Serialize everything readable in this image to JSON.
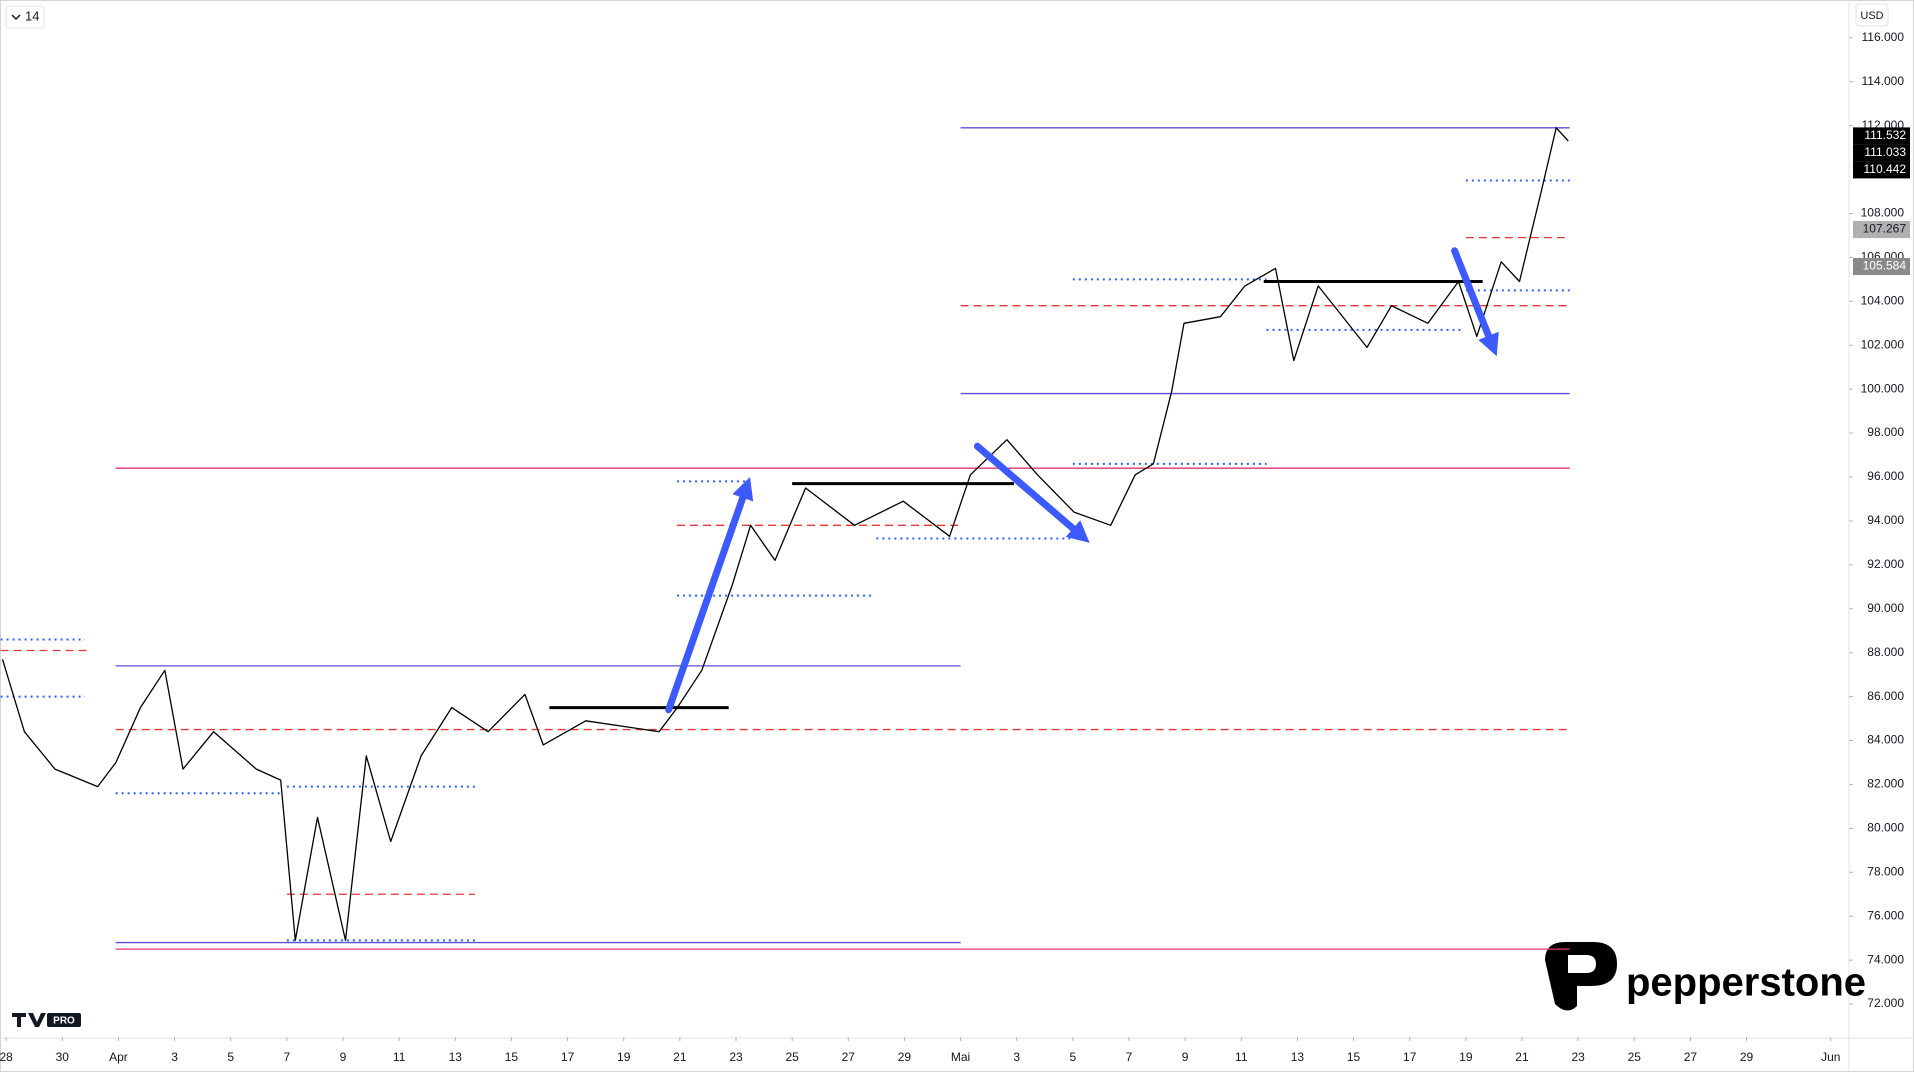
{
  "chart_data": {
    "type": "line",
    "interval": "14",
    "currency": "USD",
    "brand": "pepperstone",
    "platform": "PRO",
    "color": "#000000",
    "x": [
      -0.13,
      0.65,
      1.74,
      3.26,
      3.91,
      4.78,
      5.65,
      6.3,
      7.39,
      8.91,
      9.78,
      10.3,
      11.09,
      12.09,
      12.83,
      13.7,
      14.78,
      15.87,
      17.17,
      18.48,
      19.13,
      20.65,
      23.26,
      23.91,
      24.78,
      25.87,
      26.52,
      27.39,
      28.48,
      30.22,
      31.96,
      33.61,
      34.35,
      35.65,
      36.74,
      38.04,
      39.35,
      40.22,
      40.87,
      41.52,
      41.96,
      43.26,
      44.13,
      45.22,
      45.87,
      46.74,
      48.48,
      49.35,
      50.65,
      51.74,
      52.39,
      53.26,
      53.91,
      54.65,
      55.22,
      55.65
    ],
    "values": [
      87.7,
      84.4,
      82.7,
      81.9,
      83.0,
      85.5,
      87.2,
      82.7,
      84.4,
      82.7,
      82.2,
      74.9,
      80.5,
      74.9,
      83.3,
      79.4,
      83.3,
      85.5,
      84.4,
      86.1,
      83.8,
      84.9,
      84.4,
      85.5,
      87.2,
      91.1,
      93.8,
      92.2,
      95.5,
      93.8,
      94.9,
      93.3,
      96.1,
      97.7,
      96.1,
      94.4,
      93.8,
      96.1,
      96.6,
      99.9,
      103.0,
      103.3,
      104.7,
      105.5,
      101.3,
      104.7,
      101.9,
      103.8,
      103.0,
      104.9,
      102.4,
      105.8,
      104.9,
      108.8,
      111.9,
      111.3
    ],
    "xlim": [
      -0.22,
      65.65
    ],
    "ylim": [
      70.5,
      117.72
    ],
    "xticks": [
      {
        "value": 0,
        "label": "28"
      },
      {
        "value": 2,
        "label": "30"
      },
      {
        "value": 4,
        "label": "Apr"
      },
      {
        "value": 6,
        "label": "3"
      },
      {
        "value": 8,
        "label": "5"
      },
      {
        "value": 10,
        "label": "7"
      },
      {
        "value": 12,
        "label": "9"
      },
      {
        "value": 14,
        "label": "11"
      },
      {
        "value": 16,
        "label": "13"
      },
      {
        "value": 18,
        "label": "15"
      },
      {
        "value": 20,
        "label": "17"
      },
      {
        "value": 22,
        "label": "19"
      },
      {
        "value": 24,
        "label": "21"
      },
      {
        "value": 26,
        "label": "23"
      },
      {
        "value": 28,
        "label": "25"
      },
      {
        "value": 30,
        "label": "27"
      },
      {
        "value": 32,
        "label": "29"
      },
      {
        "value": 34,
        "label": "Mai"
      },
      {
        "value": 36,
        "label": "3"
      },
      {
        "value": 38,
        "label": "5"
      },
      {
        "value": 40,
        "label": "7"
      },
      {
        "value": 42,
        "label": "9"
      },
      {
        "value": 44,
        "label": "11"
      },
      {
        "value": 46,
        "label": "13"
      },
      {
        "value": 48,
        "label": "15"
      },
      {
        "value": 50,
        "label": "17"
      },
      {
        "value": 52,
        "label": "19"
      },
      {
        "value": 54,
        "label": "21"
      },
      {
        "value": 56,
        "label": "23"
      },
      {
        "value": 58,
        "label": "25"
      },
      {
        "value": 60,
        "label": "27"
      },
      {
        "value": 62,
        "label": "29"
      },
      {
        "value": 65,
        "label": "Jun"
      }
    ],
    "yticks": [
      {
        "value": 72,
        "label": "72.000"
      },
      {
        "value": 74,
        "label": "74.000"
      },
      {
        "value": 76,
        "label": "76.000"
      },
      {
        "value": 78,
        "label": "78.000"
      },
      {
        "value": 80,
        "label": "80.000"
      },
      {
        "value": 82,
        "label": "82.000"
      },
      {
        "value": 84,
        "label": "84.000"
      },
      {
        "value": 86,
        "label": "86.000"
      },
      {
        "value": 88,
        "label": "88.000"
      },
      {
        "value": 90,
        "label": "90.000"
      },
      {
        "value": 92,
        "label": "92.000"
      },
      {
        "value": 94,
        "label": "94.000"
      },
      {
        "value": 96,
        "label": "96.000"
      },
      {
        "value": 98,
        "label": "98.000"
      },
      {
        "value": 100,
        "label": "100.000"
      },
      {
        "value": 102,
        "label": "102.000"
      },
      {
        "value": 104,
        "label": "104.000"
      },
      {
        "value": 106,
        "label": "106.000"
      },
      {
        "value": 108,
        "label": "108.000"
      },
      {
        "value": 112,
        "label": "112.000"
      },
      {
        "value": 114,
        "label": "114.000"
      },
      {
        "value": 116,
        "label": "116.000"
      }
    ],
    "levels": [
      {
        "value": 111.9,
        "from": 34,
        "to": 55.7,
        "color": "#5b4fd6",
        "style": "solid"
      },
      {
        "value": 99.8,
        "from": 34,
        "to": 55.7,
        "color": "#5b4fd6",
        "style": "solid"
      },
      {
        "value": 87.4,
        "from": 3.9,
        "to": 34,
        "color": "#5b4fd6",
        "style": "solid"
      },
      {
        "value": 74.8,
        "from": 3.9,
        "to": 34,
        "color": "#5b4fd6",
        "style": "solid"
      },
      {
        "value": 96.4,
        "from": 3.9,
        "to": 55.7,
        "color": "#e8336d",
        "style": "solid"
      },
      {
        "value": 74.5,
        "from": 3.9,
        "to": 55.7,
        "color": "#e8336d",
        "style": "solid"
      },
      {
        "value": 84.5,
        "from": 3.9,
        "to": 55.7,
        "color": "#e53935",
        "style": "dashed"
      },
      {
        "value": 103.8,
        "from": 34,
        "to": 55.7,
        "color": "#e53935",
        "style": "dashed"
      },
      {
        "value": 88.1,
        "from": -0.2,
        "to": 3,
        "color": "#e53935",
        "style": "dashed"
      },
      {
        "value": 77.0,
        "from": 10,
        "to": 16.7,
        "color": "#e53935",
        "style": "dashed"
      },
      {
        "value": 93.8,
        "from": 23.9,
        "to": 34,
        "color": "#e53935",
        "style": "dashed"
      },
      {
        "value": 106.9,
        "from": 52,
        "to": 55.7,
        "color": "#e53935",
        "style": "dashed"
      },
      {
        "value": 88.6,
        "from": -0.2,
        "to": 2.8,
        "color": "#2962ff",
        "style": "dotted"
      },
      {
        "value": 86.0,
        "from": -0.2,
        "to": 2.8,
        "color": "#2962ff",
        "style": "dotted"
      },
      {
        "value": 81.6,
        "from": 3.9,
        "to": 9.8,
        "color": "#2962ff",
        "style": "dotted"
      },
      {
        "value": 74.9,
        "from": 10,
        "to": 16.7,
        "color": "#2962ff",
        "style": "dotted"
      },
      {
        "value": 81.9,
        "from": 10,
        "to": 16.7,
        "color": "#2962ff",
        "style": "dotted"
      },
      {
        "value": 95.8,
        "from": 23.9,
        "to": 26.5,
        "color": "#2962ff",
        "style": "dotted"
      },
      {
        "value": 90.6,
        "from": 23.9,
        "to": 30.9,
        "color": "#2962ff",
        "style": "dotted"
      },
      {
        "value": 93.2,
        "from": 31,
        "to": 38,
        "color": "#2962ff",
        "style": "dotted"
      },
      {
        "value": 96.6,
        "from": 38,
        "to": 44.9,
        "color": "#2962ff",
        "style": "dotted"
      },
      {
        "value": 105.0,
        "from": 38,
        "to": 44.9,
        "color": "#2962ff",
        "style": "dotted"
      },
      {
        "value": 102.7,
        "from": 44.9,
        "to": 51.9,
        "color": "#2962ff",
        "style": "dotted"
      },
      {
        "value": 109.5,
        "from": 52,
        "to": 55.7,
        "color": "#2962ff",
        "style": "dotted"
      },
      {
        "value": 104.5,
        "from": 52,
        "to": 55.7,
        "color": "#2962ff",
        "style": "dotted"
      },
      {
        "value": 85.5,
        "from": 19.35,
        "to": 25.74,
        "color": "#000000",
        "style": "bold"
      },
      {
        "value": 95.7,
        "from": 28,
        "to": 35.9,
        "color": "#000000",
        "style": "bold"
      },
      {
        "value": 104.9,
        "from": 44.8,
        "to": 52.6,
        "color": "#000000",
        "style": "bold"
      }
    ],
    "arrows": [
      {
        "from": [
          23.6,
          85.4
        ],
        "to": [
          26.5,
          96.0
        ],
        "color": "#3d5afe"
      },
      {
        "from": [
          34.6,
          97.4
        ],
        "to": [
          38.6,
          93.0
        ],
        "color": "#3d5afe"
      },
      {
        "from": [
          51.6,
          106.3
        ],
        "to": [
          53.1,
          101.5
        ],
        "color": "#3d5afe"
      }
    ],
    "price_labels": [
      {
        "value": 111.532,
        "label": "111.532",
        "color": "#000000"
      },
      {
        "value": 111.033,
        "label": "111.033",
        "color": "#000000"
      },
      {
        "value": 110.442,
        "label": "110.442",
        "color": "#000000"
      },
      {
        "value": 107.267,
        "label": "107.267",
        "color": "#b0b0b0"
      },
      {
        "value": 105.584,
        "label": "105.584",
        "color": "#8a8a8a"
      }
    ]
  }
}
